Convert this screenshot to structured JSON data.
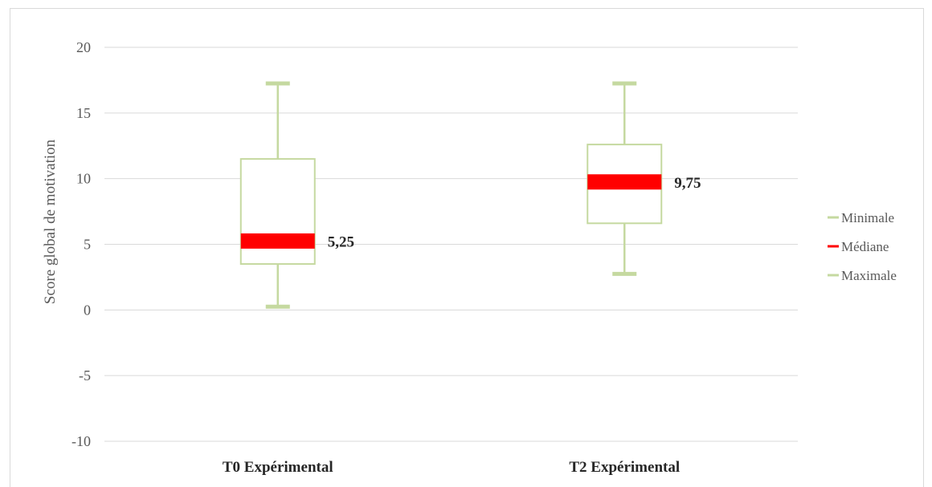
{
  "chart_data": {
    "type": "box",
    "title": "",
    "xlabel": "",
    "ylabel": "Score global de motivation",
    "ylim": [
      -10,
      20
    ],
    "yticks": [
      20,
      15,
      10,
      5,
      0,
      -5,
      -10
    ],
    "ytick_labels": [
      "20",
      "15",
      "10",
      "5",
      "0",
      "-5",
      "-10"
    ],
    "grid": true,
    "categories": [
      "T0 Expérimental",
      "T2 Expérimental"
    ],
    "boxes": [
      {
        "category": "T0 Expérimental",
        "min": 0.25,
        "q1": 3.5,
        "median": 5.25,
        "q3": 11.5,
        "max": 17.25,
        "median_label": "5,25"
      },
      {
        "category": "T2 Expérimental",
        "min": 2.75,
        "q1": 6.6,
        "median": 9.75,
        "q3": 12.6,
        "max": 17.25,
        "median_label": "9,75"
      }
    ],
    "legend": {
      "position": "right",
      "entries": [
        {
          "name": "Minimale",
          "color": "#c5d9a0"
        },
        {
          "name": "Médiane",
          "color": "#ff0000"
        },
        {
          "name": "Maximale",
          "color": "#c5d9a0"
        }
      ]
    },
    "colors": {
      "box": "#c5d9a0",
      "median": "#ff0000",
      "grid": "#d9d9d9"
    }
  }
}
